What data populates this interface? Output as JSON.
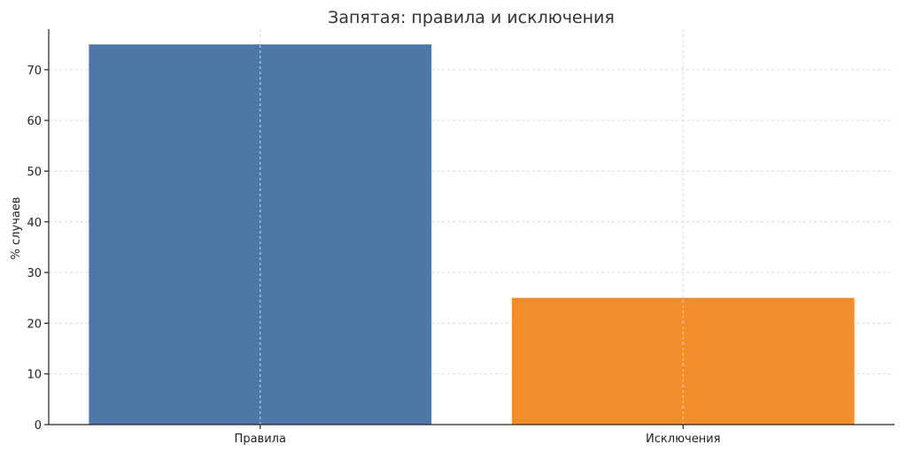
{
  "chart_data": {
    "type": "bar",
    "title": "Запятая: правила и исключения",
    "xlabel": "",
    "ylabel": "% случаев",
    "categories": [
      "Правила",
      "Исключения"
    ],
    "values": [
      75,
      25
    ],
    "ylim": [
      0,
      78
    ],
    "yticks": [
      0,
      10,
      20,
      30,
      40,
      50,
      60,
      70
    ],
    "grid": true,
    "colors": [
      "#4c78a8",
      "#f28e2b"
    ]
  }
}
